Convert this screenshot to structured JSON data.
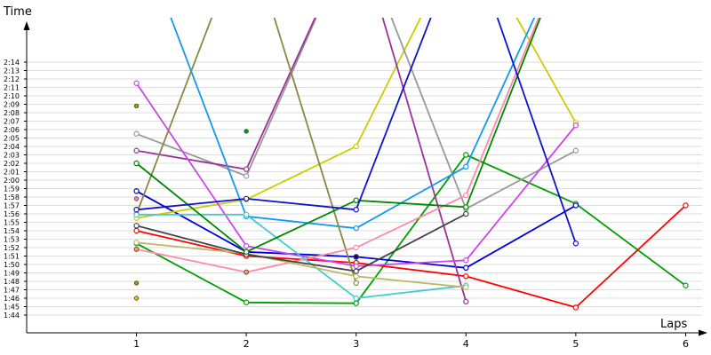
{
  "chart_data": {
    "type": "line",
    "ylabel": "Time",
    "xlabel": "Laps",
    "x_ticks": [
      1,
      2,
      3,
      4,
      5,
      6
    ],
    "y_tick_labels": [
      "1:44",
      "1:45",
      "1:46",
      "1:47",
      "1:48",
      "1:49",
      "1:50",
      "1:51",
      "1:52",
      "1:53",
      "1:54",
      "1:55",
      "1:56",
      "1:57",
      "1:58",
      "1:59",
      "2:00",
      "2:01",
      "2:02",
      "2:03",
      "2:04",
      "2:05",
      "2:06",
      "2:07",
      "2:08",
      "2:09",
      "2:10",
      "2:11",
      "2:12",
      "2:13",
      "2:14"
    ],
    "y_range_seconds": [
      102.5,
      150
    ],
    "xlim": [
      0,
      6.15
    ],
    "grid": true,
    "series": [
      {
        "color": "#00a000",
        "x": [
          1,
          2,
          3,
          4,
          5,
          6
        ],
        "y": [
          112.5,
          105.5,
          105.4,
          123,
          117.2,
          107.5
        ]
      },
      {
        "color": "#ff0000",
        "x": [
          1,
          2,
          3,
          4,
          5,
          6
        ],
        "y": [
          114,
          111,
          110.2,
          108.6,
          104.9,
          117
        ]
      },
      {
        "color": "#0000dd",
        "x": [
          1,
          2,
          3,
          4,
          5
        ],
        "y": [
          118.7,
          111.5,
          110.9,
          109.6,
          117
        ]
      },
      {
        "color": "#cccc00",
        "x": [
          1,
          2,
          3,
          4,
          5
        ],
        "y": [
          115.5,
          117.7,
          124,
          150,
          126.8
        ]
      },
      {
        "color": "#999999",
        "x": [
          1,
          2,
          3,
          4,
          5
        ],
        "y": [
          125.5,
          120.5,
          150,
          116.6,
          123.5
        ]
      },
      {
        "color": "#993399",
        "x": [
          1,
          2,
          3,
          4
        ],
        "y": [
          123.5,
          121.3,
          150,
          105.6
        ]
      },
      {
        "color": "#cc44ee",
        "x": [
          1,
          2,
          3,
          4,
          5
        ],
        "y": [
          131.5,
          112.2,
          109.8,
          110.5,
          126.5
        ]
      },
      {
        "color": "#1199ee",
        "x": [
          1,
          2,
          3,
          4,
          5
        ],
        "y": [
          150,
          115.7,
          114.3,
          121.6,
          150
        ]
      },
      {
        "color": "#888844",
        "x": [
          1,
          2,
          3
        ],
        "y": [
          116,
          150,
          107.8
        ]
      },
      {
        "color": "#ff88aa",
        "x": [
          1,
          2,
          3,
          4,
          5
        ],
        "y": [
          111.8,
          109.1,
          112,
          118.2,
          150
        ]
      },
      {
        "color": "#44cccc",
        "x": [
          1,
          2,
          3,
          4
        ],
        "y": [
          115.9,
          115.9,
          106,
          107.5
        ]
      },
      {
        "color": "#bbbb66",
        "x": [
          1,
          2,
          3,
          4
        ],
        "y": [
          112.6,
          111.3,
          108.6,
          107.3
        ]
      },
      {
        "color": "#444444",
        "x": [
          1,
          2,
          3,
          4
        ],
        "y": [
          114.6,
          111.2,
          109.2,
          116
        ]
      },
      {
        "color": "#008800",
        "x": [
          1,
          2,
          3,
          4,
          5
        ],
        "y": [
          122,
          111.5,
          117.6,
          116.8,
          150
        ]
      },
      {
        "color": "#1111cc",
        "x": [
          1,
          2,
          3,
          4,
          5
        ],
        "y": [
          116.5,
          117.8,
          116.5,
          150,
          112.5
        ]
      }
    ],
    "extra_points": [
      {
        "color": "#999900",
        "x": 1,
        "y": 128.8
      },
      {
        "color": "#999900",
        "x": 1,
        "y": 107.8
      },
      {
        "color": "#cccc00",
        "x": 1,
        "y": 106
      },
      {
        "color": "#ff88aa",
        "x": 1,
        "y": 117.8
      },
      {
        "color": "#ffaa55",
        "x": 1,
        "y": 111.8
      },
      {
        "color": "#ffaa55",
        "x": 2,
        "y": 109.1
      },
      {
        "color": "#00a000",
        "x": 2,
        "y": 125.8
      },
      {
        "color": "#000066",
        "x": 3,
        "y": 110.9
      }
    ]
  }
}
